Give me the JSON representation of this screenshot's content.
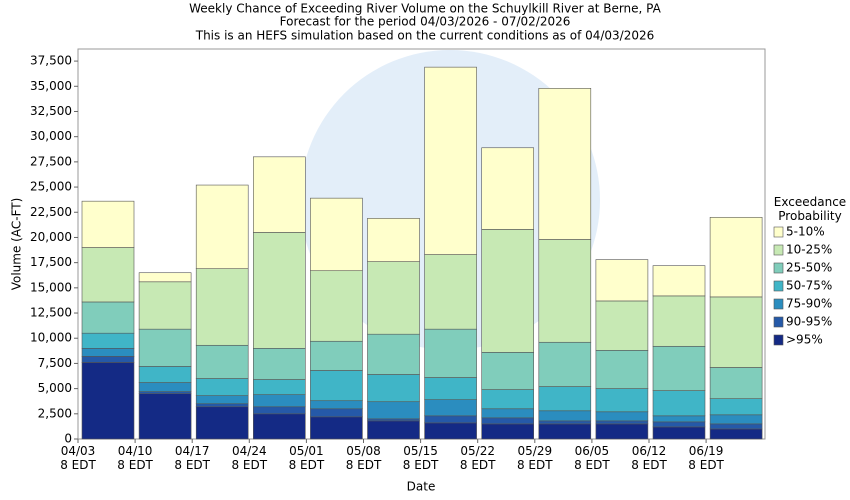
{
  "chart_data": {
    "type": "stacked_bar",
    "title": "Weekly Chance of Exceeding River Volume on the Schuylkill River at Berne, PA",
    "subtitle": "Forecast for the period 04/03/2026 - 07/02/2026",
    "note": "This is an HEFS simulation based on the current conditions as of 04/03/2026",
    "x_label": "Date",
    "y_label": "Volume (AC-FT)",
    "legend_title": "Exceedance Probability",
    "categories": [
      "04/03\n8 EDT",
      "04/10\n8 EDT",
      "04/17\n8 EDT",
      "04/24\n8 EDT",
      "05/01\n8 EDT",
      "05/08\n8 EDT",
      "05/15\n8 EDT",
      "05/22\n8 EDT",
      "05/29\n8 EDT",
      "06/05\n8 EDT",
      "06/12\n8 EDT",
      "06/19\n8 EDT"
    ],
    "series": [
      {
        "name": ">95%",
        "color": "#142a85",
        "values": [
          7600,
          4500,
          3200,
          2500,
          2200,
          1800,
          1600,
          1500,
          1500,
          1500,
          1200,
          1000
        ]
      },
      {
        "name": "90-95%",
        "color": "#2559a8",
        "values": [
          600,
          200,
          300,
          700,
          800,
          200,
          700,
          600,
          300,
          300,
          500,
          500
        ]
      },
      {
        "name": "75-90%",
        "color": "#2b8dbf",
        "values": [
          800,
          900,
          800,
          1200,
          800,
          1700,
          1600,
          900,
          1000,
          900,
          600,
          900
        ]
      },
      {
        "name": "50-75%",
        "color": "#40b5c7",
        "values": [
          1500,
          1600,
          1700,
          1500,
          3000,
          2700,
          2200,
          1900,
          2400,
          2300,
          2500,
          1600
        ]
      },
      {
        "name": "25-50%",
        "color": "#80cdbb",
        "values": [
          3100,
          3700,
          3300,
          3100,
          2900,
          4000,
          4800,
          3700,
          4400,
          3800,
          4400,
          3100
        ]
      },
      {
        "name": "10-25%",
        "color": "#c7e9b4",
        "values": [
          5400,
          4700,
          7600,
          11500,
          7000,
          7200,
          7400,
          12200,
          10200,
          4900,
          5000,
          7000
        ]
      },
      {
        "name": "5-10%",
        "color": "#ffffcc",
        "values": [
          4600,
          900,
          8300,
          7500,
          7200,
          4300,
          18600,
          8100,
          15000,
          4100,
          3000,
          7900
        ]
      }
    ],
    "ylim": [
      0,
      38700
    ],
    "yticks": [
      0,
      {
        "value": 2500,
        "label": "2,500"
      },
      {
        "value": 5000,
        "label": "5,000"
      },
      {
        "value": 7500,
        "label": "7,500"
      },
      {
        "value": 10000,
        "label": "10,000"
      },
      {
        "value": 12500,
        "label": "12,500"
      },
      {
        "value": 15000,
        "label": "15,000"
      },
      {
        "value": 17500,
        "label": "17,500"
      },
      {
        "value": 20000,
        "label": "20,000"
      },
      {
        "value": 22500,
        "label": "22,500"
      },
      {
        "value": 25000,
        "label": "25,000"
      },
      {
        "value": 27500,
        "label": "27,500"
      },
      {
        "value": 30000,
        "label": "30,000"
      },
      {
        "value": 32500,
        "label": "32,500"
      },
      {
        "value": 35000,
        "label": "35,000"
      },
      {
        "value": 37500,
        "label": "37,500"
      }
    ]
  }
}
